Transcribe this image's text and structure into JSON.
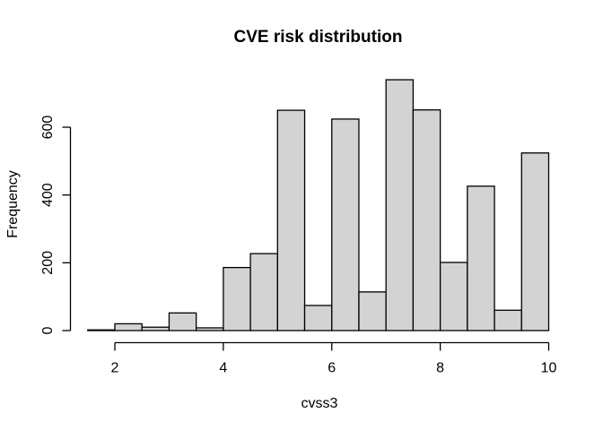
{
  "figure": {
    "background_color": "#ffffff",
    "text_color": "#000000"
  },
  "chart_data": {
    "type": "bar",
    "subtype": "histogram",
    "title": "CVE risk distribution",
    "xlabel": "cvss3",
    "ylabel": "Frequency",
    "bin_edges": [
      1.5,
      2,
      2.5,
      3,
      3.5,
      4,
      4.5,
      5,
      5.5,
      6,
      6.5,
      7,
      7.5,
      8,
      8.5,
      9,
      9.5,
      10
    ],
    "counts": [
      2,
      20,
      10,
      52,
      8,
      186,
      227,
      650,
      74,
      624,
      114,
      740,
      651,
      201,
      426,
      60,
      524
    ],
    "x_ticks": [
      2,
      4,
      6,
      8,
      10
    ],
    "y_ticks": [
      0,
      200,
      400,
      600
    ],
    "xlim": [
      1.5,
      10
    ],
    "ylim": [
      0,
      740
    ],
    "grid": false,
    "legend": false,
    "bar_fill": "#d3d3d3",
    "bar_stroke": "#000000",
    "axis_color": "#000000"
  }
}
